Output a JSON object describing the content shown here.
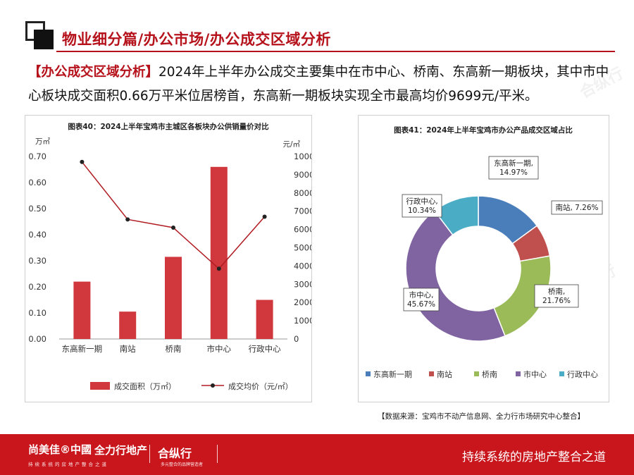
{
  "header": {
    "title": "物业细分篇/办公市场/办公成交区域分析"
  },
  "intro": {
    "tag": "【办公成交区域分析】",
    "text": "2024年上半年办公成交主要集中在市中心、桥南、东高新一期板块，其中市中心板块成交面积0.66万平米位居榜首，东高新一期板块实现全市最高均价9699元/平米。"
  },
  "chart_data": [
    {
      "type": "bar",
      "title": "图表40：2024上半年宝鸡市主城区各板块办公供销量价对比",
      "categories": [
        "东高新一期",
        "南站",
        "桥南",
        "市中心",
        "行政中心"
      ],
      "series": [
        {
          "name": "成交面积（万㎡）",
          "type": "bar",
          "axis": "left",
          "color": "#d0383e",
          "values": [
            0.22,
            0.105,
            0.315,
            0.66,
            0.15
          ]
        },
        {
          "name": "成交均价（元/㎡）",
          "type": "line",
          "axis": "right",
          "color": "#b01c22",
          "values": [
            9699,
            6550,
            6100,
            3850,
            6700
          ]
        }
      ],
      "ylabel_left": "万㎡",
      "ylabel_right": "元/㎡",
      "ylim_left": [
        0,
        0.7
      ],
      "yticks_left": [
        "0.00",
        "0.10",
        "0.20",
        "0.30",
        "0.40",
        "0.50",
        "0.60",
        "0.70"
      ],
      "ylim_right": [
        0,
        10000
      ],
      "yticks_right": [
        "0",
        "1000",
        "2000",
        "3000",
        "4000",
        "5000",
        "6000",
        "7000",
        "8000",
        "9000",
        "10000"
      ],
      "grid": false,
      "legend_position": "bottom"
    },
    {
      "type": "pie",
      "title": "图表41：2024年上半年宝鸡市办公产品成交区域占比",
      "donut": true,
      "slices": [
        {
          "label": "东高新一期",
          "value": 14.97,
          "display": "东高新一期,\n14.97%",
          "color": "#4a7ebb"
        },
        {
          "label": "南站",
          "value": 7.26,
          "display": "南站, 7.26%",
          "color": "#c0504d"
        },
        {
          "label": "桥南",
          "value": 21.76,
          "display": "桥南,\n21.76%",
          "color": "#9bbb59"
        },
        {
          "label": "市中心",
          "value": 45.67,
          "display": "市中心,\n45.67%",
          "color": "#8064a2"
        },
        {
          "label": "行政中心",
          "value": 10.34,
          "display": "行政中心,\n10.34%",
          "color": "#4bacc6"
        }
      ],
      "legend_position": "bottom"
    }
  ],
  "source": "【数据来源：宝鸡市不动产信息网、全力行市场研究中心整合】",
  "watermarks": [
    "尚美佳中國",
    "全力行地产",
    "合纵行"
  ],
  "footer": {
    "brand": "尚美佳®中國",
    "brand_sub": "持续系统的房地产整合之道",
    "brand2": "全力行地产",
    "brand3": "合纵行",
    "brand3_sub": "多元整合的品牌营造者",
    "slogan": "持续系统的房地产整合之道"
  },
  "colors": {
    "accent": "#b5121b",
    "footer_bg": "#c9161d"
  }
}
